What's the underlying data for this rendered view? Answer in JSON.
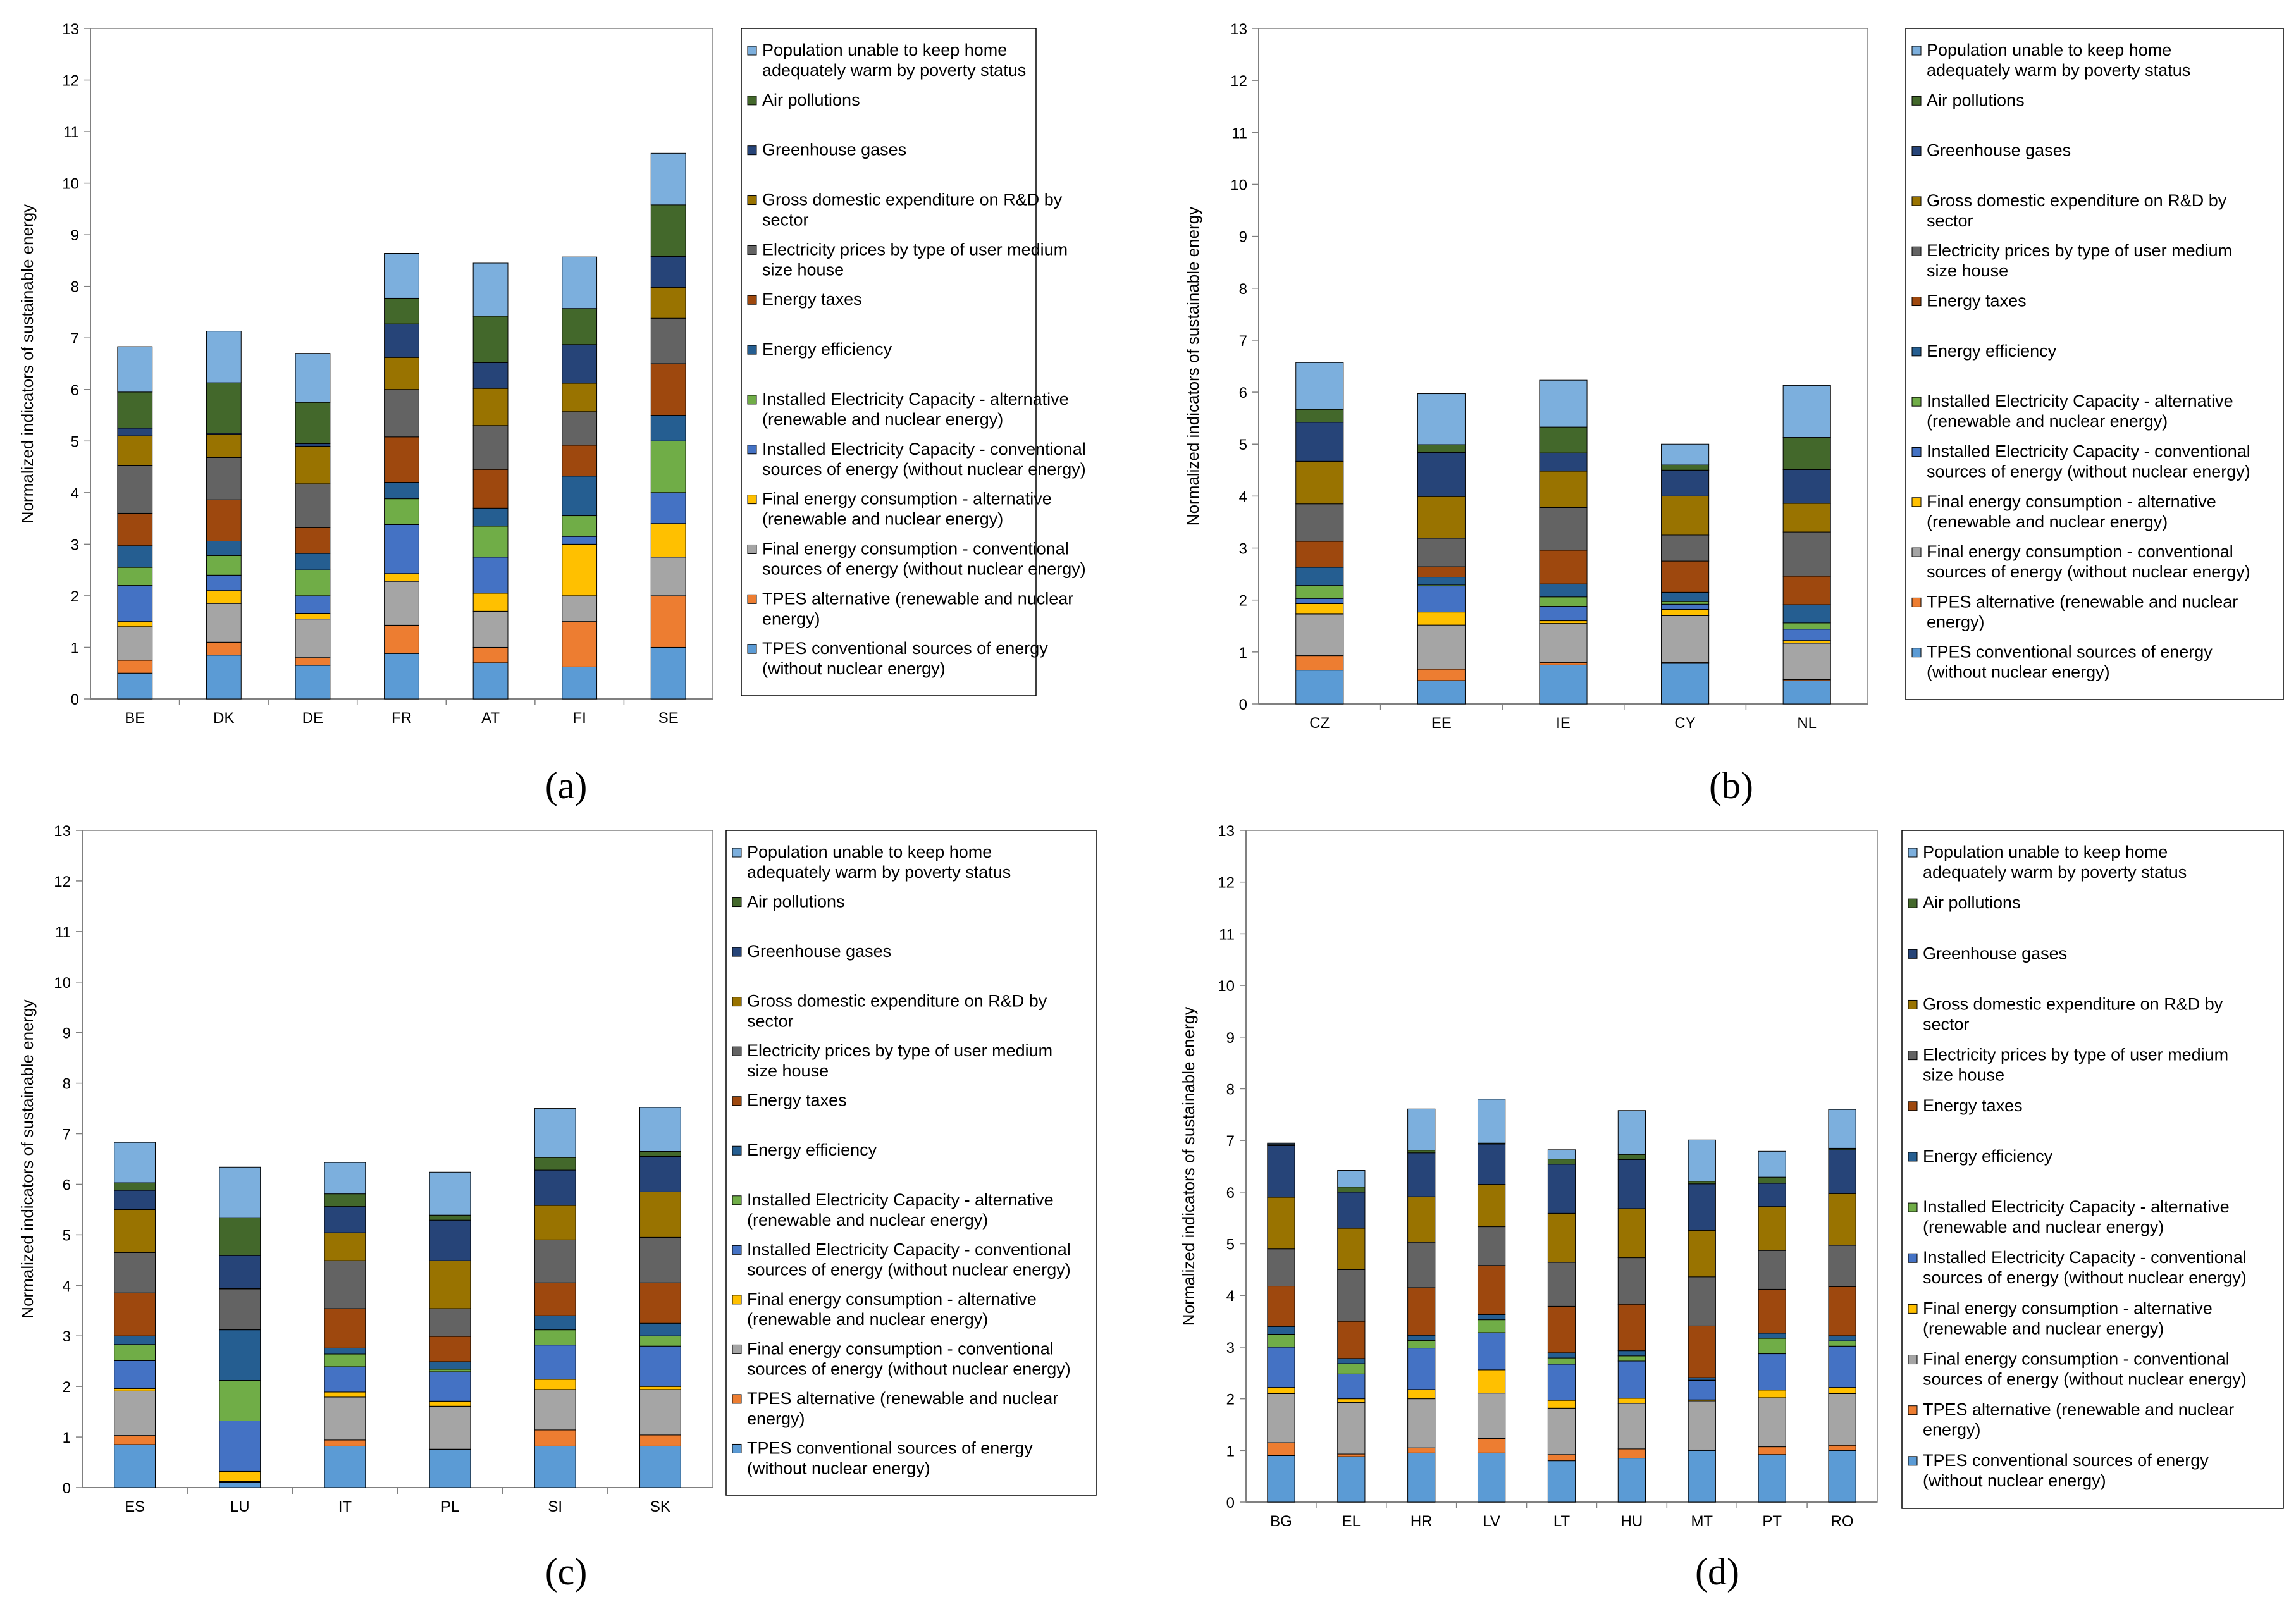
{
  "series_names": [
    "TPES conventional sources of energy (without nuclear energy)",
    "TPES alternative (renewable and nuclear energy)",
    "Final energy consumption - conventional sources of energy (without nuclear energy)",
    "Final energy consumption - alternative (renewable and nuclear energy)",
    "Installed Electricity Capacity - conventional sources of energy (without nuclear energy)",
    "Installed Electricity Capacity - alternative (renewable and nuclear energy)",
    "Energy efficiency",
    "Energy taxes",
    "Electricity prices by type of user medium size house",
    "Gross domestic expenditure on R&D by sector",
    "Greenhouse gases",
    "Air pollutions",
    "Population unable to keep home adequately warm by poverty status"
  ],
  "series_colors": [
    "#5b9bd5",
    "#ed7d31",
    "#a5a5a5",
    "#ffc000",
    "#4472c4",
    "#70ad47",
    "#255e91",
    "#9e480e",
    "#636363",
    "#997300",
    "#264478",
    "#43682b",
    "#7cafdd"
  ],
  "legend_lines": [
    [
      "TPES conventional sources of energy",
      "(without nuclear energy)"
    ],
    [
      "TPES alternative (renewable and nuclear",
      "energy)"
    ],
    [
      "Final energy consumption  - conventional",
      "sources of energy (without nuclear energy)"
    ],
    [
      "Final energy consumption  - alternative",
      "(renewable and nuclear energy)"
    ],
    [
      "Installed Electricity Capacity - conventional",
      "sources of energy (without nuclear energy)"
    ],
    [
      "Installed Electricity Capacity - alternative",
      "(renewable and nuclear energy)"
    ],
    [
      "Energy efficiency"
    ],
    [
      "Energy taxes"
    ],
    [
      "Electricity prices by type of user medium",
      "size house"
    ],
    [
      "Gross domestic expenditure on R&D by",
      "sector"
    ],
    [
      "Greenhouse gases"
    ],
    [
      "Air pollutions"
    ],
    [
      "Population unable to keep home",
      "adequately warm by poverty status"
    ]
  ],
  "chart_data": [
    {
      "type": "bar",
      "stacked": true,
      "caption": "(a)",
      "ylabel": "Normalized indicators of sustainable energy",
      "ylim": [
        0,
        13
      ],
      "yticks": [
        "0",
        "1",
        "2",
        "3",
        "4",
        "5",
        "6",
        "7",
        "8",
        "9",
        "10",
        "11",
        "12",
        "13"
      ],
      "categories": [
        "BE",
        "DK",
        "DE",
        "FR",
        "AT",
        "FI",
        "SE"
      ],
      "stacks": [
        [
          0.5,
          0.25,
          0.65,
          0.1,
          0.7,
          0.35,
          0.42,
          0.63,
          0.92,
          0.58,
          0.15,
          0.7,
          0.88
        ],
        [
          0.85,
          0.25,
          0.75,
          0.25,
          0.3,
          0.38,
          0.28,
          0.8,
          0.82,
          0.45,
          0.02,
          0.98,
          1.0
        ],
        [
          0.65,
          0.15,
          0.75,
          0.1,
          0.35,
          0.5,
          0.32,
          0.5,
          0.85,
          0.73,
          0.05,
          0.8,
          0.95
        ],
        [
          0.88,
          0.55,
          0.85,
          0.15,
          0.95,
          0.5,
          0.32,
          0.88,
          0.92,
          0.62,
          0.65,
          0.5,
          0.87
        ],
        [
          0.7,
          0.3,
          0.7,
          0.35,
          0.7,
          0.6,
          0.35,
          0.75,
          0.85,
          0.72,
          0.5,
          0.9,
          1.03
        ],
        [
          0.62,
          0.88,
          0.5,
          1.0,
          0.15,
          0.4,
          0.77,
          0.6,
          0.65,
          0.55,
          0.75,
          0.7,
          1.0
        ],
        [
          1.0,
          1.0,
          0.75,
          0.65,
          0.6,
          1.0,
          0.5,
          1.0,
          0.88,
          0.6,
          0.6,
          1.0,
          1.0
        ]
      ]
    },
    {
      "type": "bar",
      "stacked": true,
      "caption": "(b)",
      "ylabel": "Normalized indicators of sustainable energy",
      "ylim": [
        0,
        13
      ],
      "yticks": [
        "0",
        "1",
        "2",
        "3",
        "4",
        "5",
        "6",
        "7",
        "8",
        "9",
        "10",
        "11",
        "12",
        "13"
      ],
      "categories": [
        "CZ",
        "EE",
        "IE",
        "CY",
        "NL"
      ],
      "stacks": [
        [
          0.65,
          0.28,
          0.8,
          0.2,
          0.1,
          0.25,
          0.35,
          0.5,
          0.72,
          0.82,
          0.75,
          0.25,
          0.9
        ],
        [
          0.45,
          0.22,
          0.85,
          0.25,
          0.5,
          0.02,
          0.15,
          0.2,
          0.55,
          0.8,
          0.85,
          0.15,
          0.98
        ],
        [
          0.75,
          0.05,
          0.75,
          0.05,
          0.28,
          0.18,
          0.25,
          0.65,
          0.82,
          0.7,
          0.35,
          0.5,
          0.9
        ],
        [
          0.78,
          0.02,
          0.9,
          0.12,
          0.1,
          0.05,
          0.18,
          0.6,
          0.5,
          0.75,
          0.5,
          0.1,
          0.4
        ],
        [
          0.45,
          0.02,
          0.7,
          0.05,
          0.22,
          0.12,
          0.35,
          0.55,
          0.85,
          0.55,
          0.65,
          0.62,
          1.0
        ]
      ]
    },
    {
      "type": "bar",
      "stacked": true,
      "caption": "(c)",
      "ylabel": "Normalized indicators of sustainable energy",
      "ylim": [
        0,
        13
      ],
      "yticks": [
        "0",
        "1",
        "2",
        "3",
        "4",
        "5",
        "6",
        "7",
        "8",
        "9",
        "10",
        "11",
        "12",
        "13"
      ],
      "categories": [
        "ES",
        "LU",
        "IT",
        "PL",
        "SI",
        "SK"
      ],
      "stacks": [
        [
          0.85,
          0.18,
          0.88,
          0.05,
          0.55,
          0.32,
          0.17,
          0.85,
          0.8,
          0.85,
          0.38,
          0.15,
          0.8
        ],
        [
          0.1,
          0.01,
          0.01,
          0.2,
          1.0,
          0.8,
          1.0,
          0.01,
          0.8,
          0.01,
          0.65,
          0.75,
          1.0
        ],
        [
          0.82,
          0.12,
          0.85,
          0.1,
          0.5,
          0.25,
          0.12,
          0.78,
          0.95,
          0.55,
          0.52,
          0.25,
          0.62
        ],
        [
          0.75,
          0.01,
          0.85,
          0.1,
          0.58,
          0.05,
          0.15,
          0.5,
          0.55,
          0.95,
          0.8,
          0.1,
          0.85
        ],
        [
          0.82,
          0.32,
          0.8,
          0.2,
          0.68,
          0.3,
          0.28,
          0.65,
          0.85,
          0.68,
          0.7,
          0.25,
          0.97
        ],
        [
          0.82,
          0.22,
          0.9,
          0.06,
          0.8,
          0.2,
          0.25,
          0.8,
          0.9,
          0.9,
          0.7,
          0.1,
          0.87
        ]
      ]
    },
    {
      "type": "bar",
      "stacked": true,
      "caption": "(d)",
      "ylabel": "Normalized indicators of sustainable energy",
      "ylim": [
        0,
        13
      ],
      "yticks": [
        "0",
        "1",
        "2",
        "3",
        "4",
        "5",
        "6",
        "7",
        "8",
        "9",
        "10",
        "11",
        "12",
        "13"
      ],
      "categories": [
        "BG",
        "EL",
        "HR",
        "LV",
        "LT",
        "HU",
        "MT",
        "PT",
        "RO"
      ],
      "stacks": [
        [
          0.9,
          0.25,
          0.95,
          0.12,
          0.78,
          0.25,
          0.15,
          0.78,
          0.72,
          1.0,
          1.0,
          0.02,
          0.03
        ],
        [
          0.88,
          0.05,
          1.0,
          0.07,
          0.48,
          0.2,
          0.1,
          0.72,
          1.0,
          0.8,
          0.7,
          0.1,
          0.32
        ],
        [
          0.95,
          0.1,
          0.95,
          0.18,
          0.8,
          0.15,
          0.1,
          0.92,
          0.88,
          0.88,
          0.85,
          0.05,
          0.8
        ],
        [
          0.95,
          0.28,
          0.88,
          0.45,
          0.72,
          0.25,
          0.1,
          0.95,
          0.75,
          0.82,
          0.78,
          0.02,
          0.85
        ],
        [
          0.8,
          0.12,
          0.9,
          0.15,
          0.7,
          0.12,
          0.1,
          0.9,
          0.85,
          0.95,
          0.95,
          0.1,
          0.18
        ],
        [
          0.85,
          0.18,
          0.88,
          0.1,
          0.72,
          0.1,
          0.1,
          0.9,
          0.9,
          0.95,
          0.95,
          0.1,
          0.85
        ],
        [
          1.0,
          0.01,
          0.95,
          0.02,
          0.37,
          0.01,
          0.05,
          1.0,
          0.95,
          0.9,
          0.9,
          0.05,
          0.8
        ],
        [
          0.92,
          0.15,
          0.95,
          0.15,
          0.7,
          0.3,
          0.1,
          0.85,
          0.75,
          0.85,
          0.45,
          0.12,
          0.5
        ],
        [
          1.0,
          0.1,
          1.0,
          0.12,
          0.8,
          0.1,
          0.1,
          0.95,
          0.8,
          1.0,
          0.85,
          0.03,
          0.75
        ]
      ]
    }
  ]
}
